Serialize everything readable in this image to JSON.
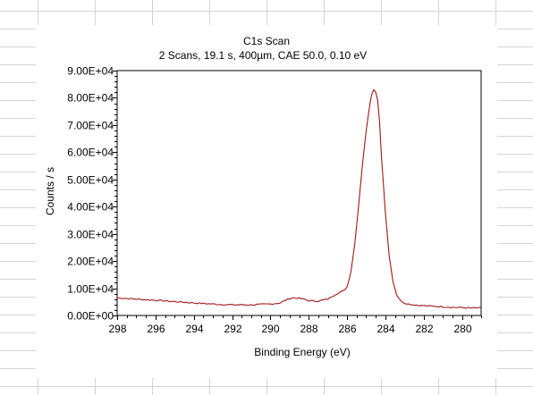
{
  "chart_data": {
    "type": "line",
    "title": "C1s Scan",
    "subtitle": "2 Scans,  19.1 s,  400µm,  CAE 50.0,  0.10 eV",
    "xlabel": "Binding Energy (eV)",
    "ylabel": "Counts / s",
    "xlim": [
      298,
      279
    ],
    "x_reversed": true,
    "ylim": [
      0,
      90000
    ],
    "x_ticks": [
      "298",
      "296",
      "294",
      "292",
      "290",
      "288",
      "286",
      "284",
      "282",
      "280"
    ],
    "x_tick_values": [
      298,
      296,
      294,
      292,
      290,
      288,
      286,
      284,
      282,
      280
    ],
    "y_ticks": [
      "0.00E+00",
      "1.00E+04",
      "2.00E+04",
      "3.00E+04",
      "4.00E+04",
      "5.00E+04",
      "6.00E+04",
      "7.00E+04",
      "8.00E+04",
      "9.00E+04"
    ],
    "y_tick_values": [
      0,
      10000,
      20000,
      30000,
      40000,
      50000,
      60000,
      70000,
      80000,
      90000
    ],
    "grid": false,
    "series": [
      {
        "color": "#a01818",
        "x": [
          298,
          297,
          296,
          295,
          294,
          293,
          292,
          291,
          290,
          289.5,
          289.2,
          289,
          288.8,
          288.5,
          288.2,
          288,
          287.5,
          287,
          286.6,
          286.2,
          286,
          285.8,
          285.6,
          285.4,
          285.2,
          285,
          284.8,
          284.7,
          284.6,
          284.5,
          284.4,
          284.3,
          284.2,
          284,
          283.8,
          283.6,
          283.4,
          283.2,
          283,
          282.8,
          282.5,
          282,
          281.5,
          281,
          280.5,
          280,
          279.5,
          279
        ],
        "y": [
          6500,
          6000,
          5600,
          5100,
          4600,
          4200,
          3900,
          3900,
          4200,
          4600,
          5600,
          6200,
          6500,
          6300,
          5900,
          5400,
          5300,
          6000,
          7800,
          9000,
          10500,
          16000,
          26000,
          40000,
          55000,
          68000,
          78000,
          81500,
          83000,
          82000,
          79000,
          71000,
          58000,
          38000,
          22000,
          12500,
          7500,
          5400,
          4600,
          4200,
          3900,
          3600,
          3400,
          3200,
          3000,
          2900,
          2700,
          2800
        ]
      }
    ]
  },
  "colors": {
    "frame": "#000000",
    "sheet_grid": "#d4d4d4",
    "background": "#ffffff"
  }
}
